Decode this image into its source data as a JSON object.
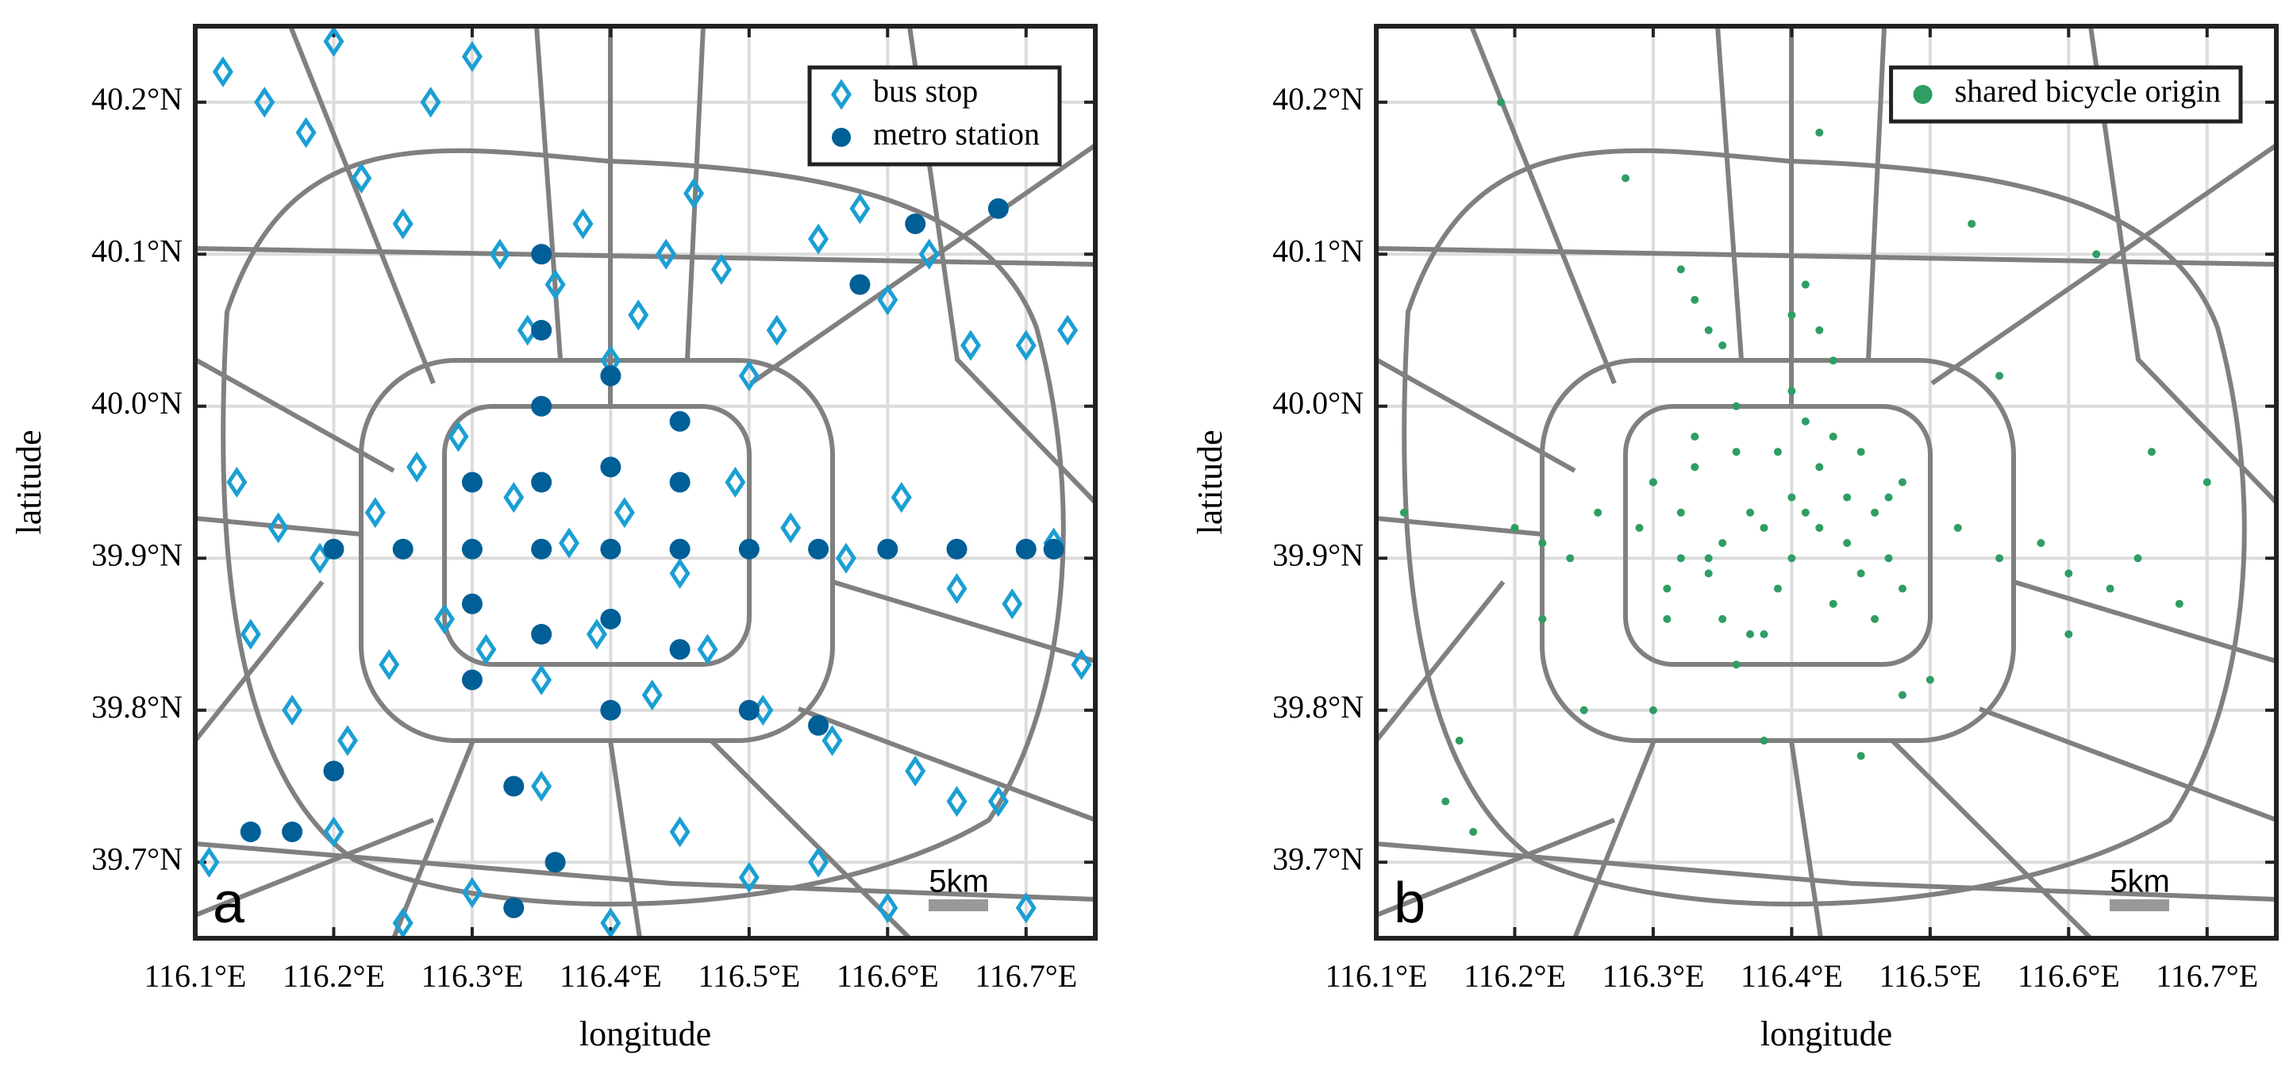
{
  "chart_data": [
    {
      "type": "scatter",
      "xlabel": "longitude",
      "ylabel": "latitude",
      "panel_label": "a",
      "scale_bar_label": "5km",
      "xlim": [
        116.1,
        116.75
      ],
      "ylim": [
        39.65,
        40.25
      ],
      "grid": true,
      "legend": "upper right",
      "xticks": [
        {
          "value": 116.1,
          "label": "116.1°E"
        },
        {
          "value": 116.2,
          "label": "116.2°E"
        },
        {
          "value": 116.3,
          "label": "116.3°E"
        },
        {
          "value": 116.4,
          "label": "116.4°E"
        },
        {
          "value": 116.5,
          "label": "116.5°E"
        },
        {
          "value": 116.6,
          "label": "116.6°E"
        },
        {
          "value": 116.7,
          "label": "116.7°E"
        }
      ],
      "yticks": [
        {
          "value": 39.7,
          "label": "39.7°N"
        },
        {
          "value": 39.8,
          "label": "39.8°N"
        },
        {
          "value": 39.9,
          "label": "39.9°N"
        },
        {
          "value": 40.0,
          "label": "40.0°N"
        },
        {
          "value": 40.1,
          "label": "40.1°N"
        },
        {
          "value": 40.2,
          "label": "40.2°N"
        }
      ],
      "series": [
        {
          "name": "bus stop",
          "color": "#1a9fd4",
          "marker": "open-diamond",
          "x": [
            116.12,
            116.15,
            116.18,
            116.2,
            116.22,
            116.25,
            116.27,
            116.3,
            116.32,
            116.34,
            116.36,
            116.38,
            116.4,
            116.42,
            116.44,
            116.46,
            116.48,
            116.5,
            116.52,
            116.55,
            116.58,
            116.6,
            116.63,
            116.66,
            116.7,
            116.73,
            116.13,
            116.16,
            116.19,
            116.23,
            116.26,
            116.29,
            116.33,
            116.37,
            116.41,
            116.45,
            116.49,
            116.53,
            116.57,
            116.61,
            116.65,
            116.69,
            116.72,
            116.14,
            116.17,
            116.21,
            116.24,
            116.28,
            116.31,
            116.35,
            116.39,
            116.43,
            116.47,
            116.51,
            116.56,
            116.62,
            116.68,
            116.74,
            116.11,
            116.2,
            116.3,
            116.4,
            116.5,
            116.6,
            116.7,
            116.25,
            116.35,
            116.45,
            116.55,
            116.65
          ],
          "y": [
            40.22,
            40.2,
            40.18,
            40.24,
            40.15,
            40.12,
            40.2,
            40.23,
            40.1,
            40.05,
            40.08,
            40.12,
            40.03,
            40.06,
            40.1,
            40.14,
            40.09,
            40.02,
            40.05,
            40.11,
            40.13,
            40.07,
            40.1,
            40.04,
            40.04,
            40.05,
            39.95,
            39.92,
            39.9,
            39.93,
            39.96,
            39.98,
            39.94,
            39.91,
            39.93,
            39.89,
            39.95,
            39.92,
            39.9,
            39.94,
            39.88,
            39.87,
            39.91,
            39.85,
            39.8,
            39.78,
            39.83,
            39.86,
            39.84,
            39.82,
            39.85,
            39.81,
            39.84,
            39.8,
            39.78,
            39.76,
            39.74,
            39.83,
            39.7,
            39.72,
            39.68,
            39.66,
            39.69,
            39.67,
            39.67,
            39.66,
            39.75,
            39.72,
            39.7,
            39.74
          ]
        },
        {
          "name": "metro station",
          "color": "#005f96",
          "marker": "filled-circle",
          "x": [
            116.2,
            116.25,
            116.3,
            116.35,
            116.4,
            116.45,
            116.5,
            116.55,
            116.6,
            116.65,
            116.7,
            116.72,
            116.35,
            116.35,
            116.35,
            116.35,
            116.35,
            116.4,
            116.4,
            116.4,
            116.4,
            116.45,
            116.45,
            116.45,
            116.3,
            116.3,
            116.3,
            116.33,
            116.36,
            116.33,
            116.58,
            116.62,
            116.68,
            116.14,
            116.17,
            116.2,
            116.5,
            116.55
          ],
          "y": [
            39.906,
            39.906,
            39.906,
            39.906,
            39.906,
            39.906,
            39.906,
            39.906,
            39.906,
            39.906,
            39.906,
            39.906,
            39.85,
            39.95,
            40.0,
            40.05,
            40.1,
            39.8,
            39.86,
            39.96,
            40.02,
            39.84,
            39.95,
            39.99,
            39.95,
            39.87,
            39.82,
            39.75,
            39.7,
            39.67,
            40.08,
            40.12,
            40.13,
            39.72,
            39.72,
            39.76,
            39.8,
            39.79
          ]
        }
      ]
    },
    {
      "type": "scatter",
      "xlabel": "longitude",
      "ylabel": "latitude",
      "panel_label": "b",
      "scale_bar_label": "5km",
      "xlim": [
        116.1,
        116.75
      ],
      "ylim": [
        39.65,
        40.25
      ],
      "grid": true,
      "legend": "upper right",
      "xticks": [
        {
          "value": 116.1,
          "label": "116.1°E"
        },
        {
          "value": 116.2,
          "label": "116.2°E"
        },
        {
          "value": 116.3,
          "label": "116.3°E"
        },
        {
          "value": 116.4,
          "label": "116.4°E"
        },
        {
          "value": 116.5,
          "label": "116.5°E"
        },
        {
          "value": 116.6,
          "label": "116.6°E"
        },
        {
          "value": 116.7,
          "label": "116.7°E"
        }
      ],
      "yticks": [
        {
          "value": 39.7,
          "label": "39.7°N"
        },
        {
          "value": 39.8,
          "label": "39.8°N"
        },
        {
          "value": 39.9,
          "label": "39.9°N"
        },
        {
          "value": 40.0,
          "label": "40.0°N"
        },
        {
          "value": 40.1,
          "label": "40.1°N"
        },
        {
          "value": 40.2,
          "label": "40.2°N"
        }
      ],
      "series": [
        {
          "name": "shared bicycle origin",
          "color": "#2e9e63",
          "marker": "small-circle",
          "x": [
            116.3,
            116.32,
            116.34,
            116.36,
            116.38,
            116.4,
            116.42,
            116.44,
            116.46,
            116.48,
            116.31,
            116.33,
            116.35,
            116.37,
            116.39,
            116.41,
            116.43,
            116.45,
            116.47,
            116.29,
            116.3,
            116.34,
            116.38,
            116.42,
            116.46,
            116.36,
            116.4,
            116.44,
            116.32,
            116.48,
            116.33,
            116.37,
            116.41,
            116.45,
            116.35,
            116.39,
            116.43,
            116.31,
            116.47,
            116.4,
            116.4,
            116.42,
            116.41,
            116.43,
            116.33,
            116.34,
            116.32,
            116.35,
            116.2,
            116.22,
            116.24,
            116.26,
            116.52,
            116.55,
            116.58,
            116.6,
            116.63,
            116.65,
            116.68,
            116.12,
            116.15,
            116.17,
            116.16,
            116.25,
            116.5,
            116.3,
            116.45,
            116.38,
            116.55,
            116.6,
            116.7,
            116.22,
            116.28,
            116.48,
            116.62,
            116.53,
            116.66,
            116.19,
            116.42,
            116.36
          ],
          "y": [
            39.95,
            39.93,
            39.9,
            39.97,
            39.92,
            39.94,
            39.96,
            39.91,
            39.93,
            39.95,
            39.88,
            39.98,
            39.86,
            39.93,
            39.88,
            39.99,
            39.87,
            39.97,
            39.9,
            39.92,
            39.95,
            39.89,
            39.85,
            39.92,
            39.86,
            40.0,
            39.9,
            39.94,
            39.9,
            39.88,
            39.96,
            39.85,
            39.93,
            39.89,
            39.91,
            39.97,
            39.98,
            39.86,
            39.94,
            40.01,
            40.06,
            40.05,
            40.08,
            40.03,
            40.07,
            40.05,
            40.09,
            40.04,
            39.92,
            39.91,
            39.9,
            39.93,
            39.92,
            39.9,
            39.91,
            39.89,
            39.88,
            39.9,
            39.87,
            39.93,
            39.74,
            39.72,
            39.78,
            39.8,
            39.82,
            39.8,
            39.77,
            39.78,
            40.02,
            39.85,
            39.95,
            39.86,
            40.15,
            39.81,
            40.1,
            40.12,
            39.97,
            40.2,
            40.18,
            39.83
          ]
        }
      ]
    }
  ]
}
